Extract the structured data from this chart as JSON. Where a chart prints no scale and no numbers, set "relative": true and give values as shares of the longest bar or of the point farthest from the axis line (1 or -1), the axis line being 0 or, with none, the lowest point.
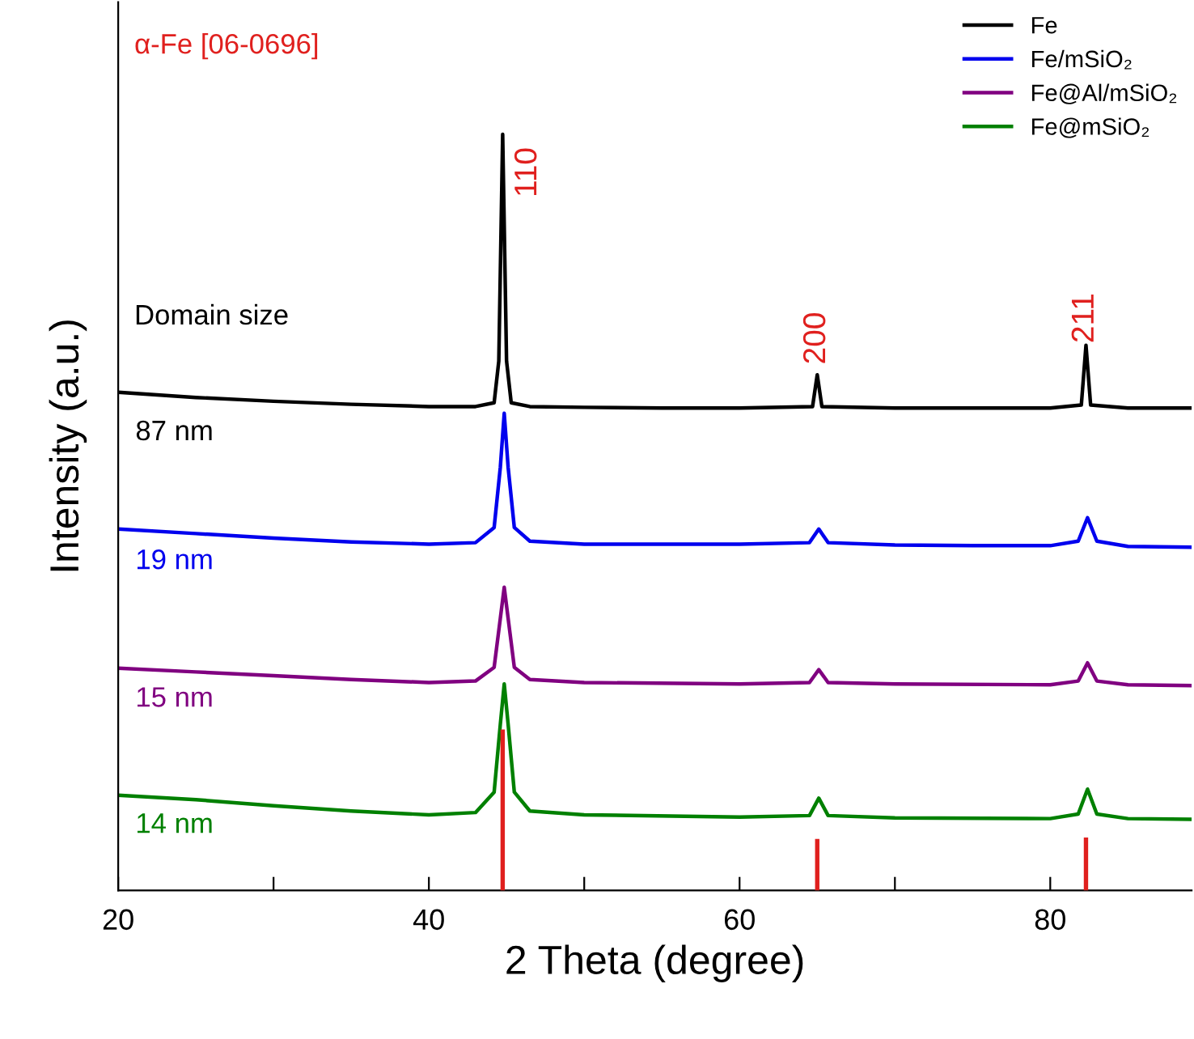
{
  "chart_data": {
    "type": "line",
    "relative": true,
    "xlabel": "2 Theta (degree)",
    "ylabel": "Intensity (a.u.)",
    "xlim": [
      20,
      89.1
    ],
    "xticks": [
      20,
      {
        "value": 30,
        "label": null
      },
      40,
      {
        "value": 50,
        "label": null
      },
      60,
      {
        "value": 70,
        "label": null
      },
      80
    ],
    "legend": "top right",
    "grid": false,
    "tick_labels": "x",
    "marker": "none",
    "line_style": "solid",
    "series": [
      {
        "name": "Fe",
        "color": "#000000",
        "x": [
          20,
          25,
          30,
          35,
          40,
          43,
          44.2,
          44.5,
          44.75,
          45.0,
          45.3,
          46.5,
          50,
          55,
          60,
          64.7,
          65.0,
          65.3,
          70,
          75,
          80,
          82.0,
          82.3,
          82.6,
          85,
          89
        ],
        "values": [
          0.659,
          0.652,
          0.647,
          0.643,
          0.64,
          0.64,
          0.645,
          0.7,
          1.0,
          0.7,
          0.645,
          0.64,
          0.639,
          0.638,
          0.638,
          0.64,
          0.682,
          0.64,
          0.638,
          0.638,
          0.638,
          0.642,
          0.721,
          0.642,
          0.638,
          0.638
        ]
      },
      {
        "name": "Fe/mSiO₂",
        "color": "#0000ee",
        "x": [
          20,
          25,
          30,
          35,
          40,
          43,
          44.2,
          44.6,
          44.85,
          45.1,
          45.5,
          46.5,
          50,
          60,
          64.5,
          65.1,
          65.7,
          70,
          75,
          80,
          81.8,
          82.4,
          83.0,
          85,
          89
        ],
        "values": [
          0.478,
          0.472,
          0.466,
          0.461,
          0.458,
          0.46,
          0.48,
          0.56,
          0.631,
          0.56,
          0.48,
          0.462,
          0.458,
          0.458,
          0.46,
          0.478,
          0.46,
          0.457,
          0.456,
          0.456,
          0.462,
          0.493,
          0.462,
          0.455,
          0.454
        ]
      },
      {
        "name": "Fe@Al/mSiO₂",
        "color": "#800080",
        "x": [
          20,
          25,
          30,
          35,
          40,
          43,
          44.2,
          44.6,
          44.85,
          45.1,
          45.5,
          46.5,
          50,
          60,
          64.5,
          65.1,
          65.7,
          70,
          80,
          81.8,
          82.4,
          83.0,
          85,
          89
        ],
        "values": [
          0.294,
          0.289,
          0.284,
          0.279,
          0.275,
          0.277,
          0.295,
          0.36,
          0.401,
          0.36,
          0.295,
          0.279,
          0.275,
          0.273,
          0.275,
          0.292,
          0.275,
          0.273,
          0.272,
          0.277,
          0.301,
          0.277,
          0.272,
          0.271
        ]
      },
      {
        "name": "Fe@mSiO₂",
        "color": "#008000",
        "x": [
          20,
          25,
          30,
          35,
          40,
          43,
          44.2,
          44.6,
          44.85,
          45.1,
          45.5,
          46.5,
          50,
          60,
          64.5,
          65.1,
          65.7,
          70,
          80,
          81.8,
          82.4,
          83.0,
          85,
          89
        ],
        "values": [
          0.126,
          0.12,
          0.112,
          0.105,
          0.1,
          0.103,
          0.13,
          0.22,
          0.273,
          0.22,
          0.13,
          0.105,
          0.1,
          0.097,
          0.099,
          0.122,
          0.099,
          0.096,
          0.095,
          0.101,
          0.134,
          0.101,
          0.095,
          0.094
        ]
      },
      {
        "type": "bar",
        "color": "#e0201e",
        "x": [
          44.75,
          65.0,
          82.3
        ],
        "values": [
          0.213,
          0.068,
          0.07
        ]
      }
    ],
    "annotations": [
      "α-Fe [06-0696]",
      "Domain size",
      "110",
      "200",
      "211",
      "87 nm",
      "19 nm",
      "15 nm",
      "14 nm"
    ]
  }
}
